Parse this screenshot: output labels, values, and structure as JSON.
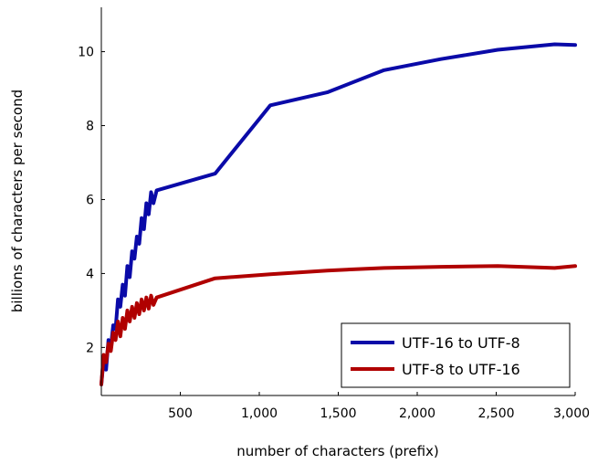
{
  "chart_data": {
    "type": "line",
    "title": "",
    "xlabel": "number of characters (prefix)",
    "ylabel": "billions of characters per second",
    "xlim": [
      0,
      3000
    ],
    "ylim": [
      0.7,
      11.2
    ],
    "x_ticks": [
      500,
      1000,
      1500,
      2000,
      2500,
      3000
    ],
    "x_tick_labels": [
      "500",
      "1,000",
      "1,500",
      "2,000",
      "2,500",
      "3,000"
    ],
    "y_ticks": [
      2,
      4,
      6,
      8,
      10
    ],
    "y_tick_labels": [
      "2",
      "4",
      "6",
      "8",
      "10"
    ],
    "grid": false,
    "legend_position": "bottom-right",
    "series": [
      {
        "name": "UTF-16 to UTF-8",
        "color": "#0a0aa8",
        "points": [
          [
            0,
            1.0
          ],
          [
            15,
            1.7
          ],
          [
            30,
            1.4
          ],
          [
            45,
            2.2
          ],
          [
            60,
            2.0
          ],
          [
            75,
            2.6
          ],
          [
            90,
            2.5
          ],
          [
            105,
            3.3
          ],
          [
            120,
            3.1
          ],
          [
            135,
            3.7
          ],
          [
            150,
            3.4
          ],
          [
            165,
            4.2
          ],
          [
            180,
            3.9
          ],
          [
            195,
            4.6
          ],
          [
            210,
            4.4
          ],
          [
            225,
            5.0
          ],
          [
            240,
            4.8
          ],
          [
            255,
            5.5
          ],
          [
            270,
            5.2
          ],
          [
            285,
            5.9
          ],
          [
            300,
            5.6
          ],
          [
            315,
            6.2
          ],
          [
            330,
            5.9
          ],
          [
            350,
            6.25
          ],
          [
            720,
            6.7
          ],
          [
            1070,
            8.55
          ],
          [
            1430,
            8.9
          ],
          [
            1790,
            9.5
          ],
          [
            2150,
            9.8
          ],
          [
            2510,
            10.05
          ],
          [
            2870,
            10.2
          ],
          [
            3000,
            10.18
          ]
        ]
      },
      {
        "name": "UTF-8 to UTF-16",
        "color": "#b00000",
        "points": [
          [
            0,
            1.0
          ],
          [
            15,
            1.8
          ],
          [
            30,
            1.6
          ],
          [
            45,
            2.1
          ],
          [
            60,
            1.9
          ],
          [
            75,
            2.4
          ],
          [
            90,
            2.2
          ],
          [
            105,
            2.7
          ],
          [
            120,
            2.3
          ],
          [
            135,
            2.8
          ],
          [
            150,
            2.5
          ],
          [
            165,
            3.0
          ],
          [
            180,
            2.7
          ],
          [
            195,
            3.1
          ],
          [
            210,
            2.8
          ],
          [
            225,
            3.2
          ],
          [
            240,
            2.9
          ],
          [
            255,
            3.3
          ],
          [
            270,
            3.0
          ],
          [
            285,
            3.35
          ],
          [
            300,
            3.05
          ],
          [
            315,
            3.4
          ],
          [
            330,
            3.15
          ],
          [
            350,
            3.35
          ],
          [
            720,
            3.87
          ],
          [
            1070,
            3.98
          ],
          [
            1430,
            4.08
          ],
          [
            1790,
            4.15
          ],
          [
            2150,
            4.18
          ],
          [
            2510,
            4.2
          ],
          [
            2870,
            4.15
          ],
          [
            3000,
            4.2
          ]
        ]
      }
    ]
  }
}
